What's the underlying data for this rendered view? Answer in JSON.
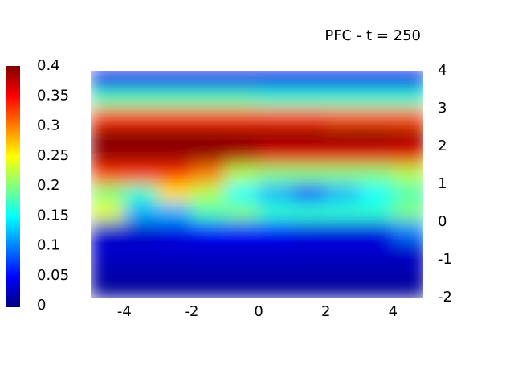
{
  "chart_data": {
    "type": "heatmap",
    "title": "PFC - t = 250",
    "x": [
      -4.5,
      -3.5,
      -2.5,
      -1.5,
      -0.5,
      0.5,
      1.5,
      2.5,
      3.5,
      4.5
    ],
    "y": [
      3.75,
      3.25,
      2.75,
      2.25,
      1.75,
      1.25,
      0.75,
      0.25,
      -0.25,
      -0.75,
      -1.25,
      -1.75
    ],
    "z": [
      [
        0.04,
        0.04,
        0.04,
        0.04,
        0.04,
        0.04,
        0.04,
        0.04,
        0.04,
        0.04
      ],
      [
        0.18,
        0.18,
        0.18,
        0.18,
        0.18,
        0.17,
        0.17,
        0.17,
        0.17,
        0.17
      ],
      [
        0.33,
        0.33,
        0.33,
        0.33,
        0.33,
        0.33,
        0.33,
        0.32,
        0.32,
        0.32
      ],
      [
        0.4,
        0.4,
        0.4,
        0.4,
        0.4,
        0.4,
        0.4,
        0.4,
        0.4,
        0.39
      ],
      [
        0.39,
        0.39,
        0.39,
        0.39,
        0.38,
        0.36,
        0.36,
        0.36,
        0.36,
        0.36
      ],
      [
        0.33,
        0.33,
        0.33,
        0.3,
        0.22,
        0.2,
        0.2,
        0.2,
        0.2,
        0.22
      ],
      [
        0.2,
        0.17,
        0.26,
        0.22,
        0.15,
        0.12,
        0.08,
        0.12,
        0.15,
        0.18
      ],
      [
        0.24,
        0.12,
        0.12,
        0.18,
        0.2,
        0.17,
        0.17,
        0.17,
        0.17,
        0.2
      ],
      [
        0.03,
        0.03,
        0.04,
        0.05,
        0.05,
        0.05,
        0.04,
        0.04,
        0.04,
        0.1
      ],
      [
        0.03,
        0.03,
        0.03,
        0.03,
        0.03,
        0.03,
        0.03,
        0.03,
        0.03,
        0.03
      ],
      [
        0.02,
        0.02,
        0.02,
        0.02,
        0.02,
        0.02,
        0.02,
        0.02,
        0.02,
        0.02
      ],
      [
        0.01,
        0.01,
        0.01,
        0.01,
        0.01,
        0.01,
        0.01,
        0.01,
        0.01,
        0.01
      ]
    ],
    "xlim": [
      -5,
      4.9
    ],
    "xticks": [
      -4,
      -2,
      0,
      2,
      4
    ],
    "ylim": [
      -2,
      4
    ],
    "yticks": [
      -2,
      -1,
      0,
      1,
      2,
      3,
      4
    ],
    "clim": [
      0,
      0.4
    ],
    "cticks": [
      0,
      0.05,
      0.1,
      0.15,
      0.2,
      0.25,
      0.3,
      0.35,
      0.4
    ],
    "colormap": "jet"
  }
}
